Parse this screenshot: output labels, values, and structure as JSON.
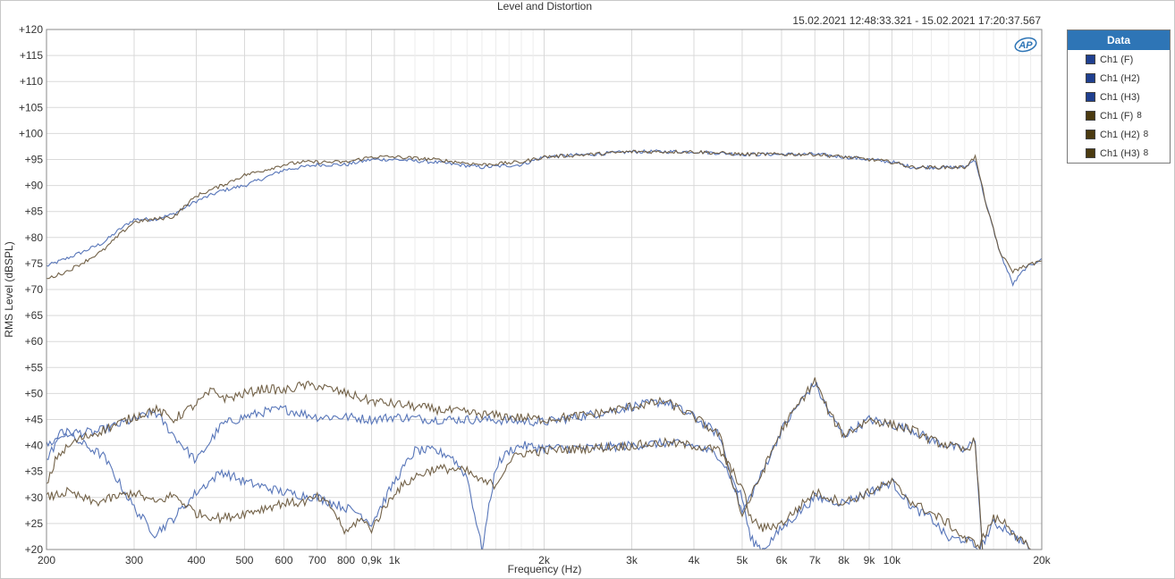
{
  "chart_data": {
    "type": "line",
    "title": "Level and Distortion",
    "subtitle": "15.02.2021 12:48:33.321 - 15.02.2021 17:20:37.567",
    "xlabel": "Frequency (Hz)",
    "ylabel": "RMS Level (dBSPL)",
    "xscale": "log",
    "xlim": [
      200,
      20000
    ],
    "ylim": [
      20,
      120
    ],
    "grid": true,
    "legend_position": "right",
    "legend_title": "Data",
    "x_ticks": [
      {
        "v": 200,
        "label": "200"
      },
      {
        "v": 300,
        "label": "300"
      },
      {
        "v": 400,
        "label": "400"
      },
      {
        "v": 500,
        "label": "500"
      },
      {
        "v": 600,
        "label": "600"
      },
      {
        "v": 700,
        "label": "700"
      },
      {
        "v": 800,
        "label": "800"
      },
      {
        "v": 900,
        "label": "0,9k"
      },
      {
        "v": 1000,
        "label": "1k"
      },
      {
        "v": 2000,
        "label": "2k"
      },
      {
        "v": 3000,
        "label": "3k"
      },
      {
        "v": 4000,
        "label": "4k"
      },
      {
        "v": 5000,
        "label": "5k"
      },
      {
        "v": 6000,
        "label": "6k"
      },
      {
        "v": 7000,
        "label": "7k"
      },
      {
        "v": 8000,
        "label": "8k"
      },
      {
        "v": 9000,
        "label": "9k"
      },
      {
        "v": 10000,
        "label": "10k"
      },
      {
        "v": 20000,
        "label": "20k"
      }
    ],
    "x_minor": [
      1100,
      1200,
      1300,
      1400,
      1500,
      1600,
      1700,
      1800,
      1900,
      11000,
      12000,
      13000,
      14000,
      15000,
      16000,
      17000,
      18000,
      19000
    ],
    "y_ticks": [
      {
        "v": 120,
        "label": "+120"
      },
      {
        "v": 115,
        "label": "+115"
      },
      {
        "v": 110,
        "label": "+110"
      },
      {
        "v": 105,
        "label": "+105"
      },
      {
        "v": 100,
        "label": "+100"
      },
      {
        "v": 95,
        "label": "+95"
      },
      {
        "v": 90,
        "label": "+90"
      },
      {
        "v": 85,
        "label": "+85"
      },
      {
        "v": 80,
        "label": "+80"
      },
      {
        "v": 75,
        "label": "+75"
      },
      {
        "v": 70,
        "label": "+70"
      },
      {
        "v": 65,
        "label": "+65"
      },
      {
        "v": 60,
        "label": "+60"
      },
      {
        "v": 55,
        "label": "+55"
      },
      {
        "v": 50,
        "label": "+50"
      },
      {
        "v": 45,
        "label": "+45"
      },
      {
        "v": 40,
        "label": "+40"
      },
      {
        "v": 35,
        "label": "+35"
      },
      {
        "v": 30,
        "label": "+30"
      },
      {
        "v": 25,
        "label": "+25"
      },
      {
        "v": 20,
        "label": "+20"
      }
    ],
    "series": [
      {
        "name": "Ch1 (F)",
        "suffix": "",
        "color": "#4f6fb5",
        "legend_color": "#1f3f8f",
        "x": [
          200,
          220,
          240,
          260,
          280,
          300,
          330,
          360,
          400,
          450,
          500,
          550,
          600,
          650,
          700,
          800,
          900,
          1000,
          1200,
          1500,
          1800,
          2000,
          2500,
          3000,
          3500,
          4000,
          5000,
          6000,
          7000,
          8000,
          9000,
          10000,
          11000,
          12000,
          13000,
          14000,
          14700,
          15500,
          16500,
          17500,
          18500,
          20000
        ],
        "y": [
          74.5,
          76,
          77.5,
          79,
          81.5,
          83.5,
          83.5,
          84.5,
          87,
          89,
          90,
          91.5,
          93,
          93.5,
          94,
          94,
          95,
          95,
          94.5,
          93.5,
          94,
          95.5,
          96,
          96.5,
          96.5,
          96.5,
          96,
          96,
          96,
          95.5,
          95,
          94.5,
          93.5,
          93.5,
          93.5,
          93.5,
          95,
          86,
          77,
          71,
          74,
          76
        ]
      },
      {
        "name": "Ch1 (H2)",
        "suffix": "",
        "color": "#4f6fb5",
        "legend_color": "#1f3f8f",
        "x": [
          200,
          220,
          250,
          300,
          330,
          360,
          400,
          450,
          500,
          550,
          600,
          700,
          800,
          900,
          1000,
          1200,
          1500,
          2000,
          2500,
          3000,
          3500,
          4000,
          4500,
          5000,
          5500,
          6000,
          6500,
          7000,
          7500,
          8000,
          9000,
          10000,
          11000,
          12000,
          13000,
          14000,
          14700,
          15200
        ],
        "y": [
          40,
          42.5,
          42.5,
          45,
          46.5,
          42,
          37,
          44,
          45.5,
          46.5,
          47,
          45.5,
          45.5,
          45,
          45.5,
          45,
          45,
          44.5,
          46,
          47.5,
          48.5,
          45.5,
          42,
          27,
          35,
          43,
          48,
          52,
          46,
          42,
          45,
          44,
          43,
          41,
          40,
          39,
          41,
          20
        ]
      },
      {
        "name": "Ch1 (H3)",
        "suffix": "",
        "color": "#4f6fb5",
        "legend_color": "#1f3f8f",
        "x": [
          200,
          215,
          230,
          260,
          300,
          330,
          360,
          400,
          450,
          500,
          550,
          600,
          700,
          800,
          850,
          900,
          1000,
          1100,
          1200,
          1300,
          1400,
          1500,
          1600,
          1700,
          1800,
          2000,
          2500,
          3000,
          3500,
          4000,
          4500,
          5000,
          5200,
          5500,
          6000,
          7000,
          8000,
          9000,
          10000,
          11000,
          12000,
          13000,
          14000,
          15000,
          16000,
          17000,
          18000,
          19000
        ],
        "y": [
          37,
          43,
          41,
          38,
          28,
          23,
          26,
          31,
          35,
          33,
          32,
          31,
          30,
          28,
          27,
          25,
          33,
          39,
          39,
          38,
          34,
          20,
          36,
          39,
          40,
          39.5,
          39.5,
          40,
          40.5,
          40,
          38,
          30,
          22,
          20,
          24,
          30,
          29,
          31,
          33,
          28,
          26,
          22,
          22,
          20,
          25,
          24,
          22,
          20
        ]
      },
      {
        "name": "Ch1 (F)",
        "suffix": "8",
        "color": "#6b5a3e",
        "legend_color": "#4a3a10",
        "x": [
          200,
          220,
          240,
          260,
          280,
          300,
          330,
          360,
          400,
          450,
          500,
          550,
          600,
          650,
          700,
          800,
          900,
          1000,
          1200,
          1500,
          1800,
          2000,
          2500,
          3000,
          3500,
          4000,
          5000,
          6000,
          7000,
          8000,
          9000,
          10000,
          11000,
          12000,
          13000,
          14000,
          14700,
          15500,
          16500,
          17500,
          18500,
          20000
        ],
        "y": [
          72,
          73.5,
          75.5,
          77.5,
          80.5,
          83,
          83.5,
          84,
          88,
          90,
          92,
          93,
          94,
          94.5,
          94.5,
          94.5,
          95.5,
          95.5,
          95,
          94,
          94.5,
          95.5,
          96,
          96.5,
          96.5,
          96.5,
          96,
          96,
          96,
          95.5,
          95,
          94.5,
          93.5,
          93.5,
          93.5,
          93.5,
          95.5,
          86,
          77,
          73.5,
          74.5,
          75.5
        ]
      },
      {
        "name": "Ch1 (H2)",
        "suffix": "8",
        "color": "#6b5a3e",
        "legend_color": "#4a3a10",
        "x": [
          200,
          210,
          230,
          260,
          300,
          330,
          360,
          400,
          430,
          460,
          500,
          550,
          600,
          650,
          700,
          800,
          900,
          1000,
          1200,
          1500,
          2000,
          2500,
          3000,
          3500,
          4000,
          4500,
          5000,
          5500,
          6000,
          6500,
          7000,
          7500,
          8000,
          9000,
          10000,
          11000,
          12000,
          13000,
          14000,
          14700,
          15200
        ],
        "y": [
          32,
          38,
          41,
          43,
          45.5,
          47,
          45,
          48,
          50.5,
          49,
          50,
          51,
          50.5,
          51.5,
          51.5,
          50,
          48.5,
          48,
          47,
          46,
          45,
          46,
          47.5,
          48.5,
          45.5,
          42,
          26.5,
          35,
          43,
          48,
          52.5,
          46,
          42,
          45,
          44,
          43,
          41,
          40,
          39,
          41,
          20
        ]
      },
      {
        "name": "Ch1 (H3)",
        "suffix": "8",
        "color": "#6b5a3e",
        "legend_color": "#4a3a10",
        "x": [
          200,
          220,
          250,
          300,
          330,
          360,
          400,
          450,
          500,
          550,
          600,
          650,
          700,
          750,
          800,
          850,
          900,
          1000,
          1100,
          1200,
          1300,
          1400,
          1500,
          1600,
          1700,
          1800,
          2000,
          2500,
          3000,
          3500,
          4000,
          4500,
          5000,
          5200,
          5500,
          6000,
          7000,
          8000,
          9000,
          10000,
          11000,
          12000,
          13000,
          14000,
          15000,
          16000,
          17000,
          18000,
          19000
        ],
        "y": [
          30,
          31,
          29,
          31,
          29,
          30.5,
          27,
          26,
          27,
          28,
          29,
          29,
          30,
          28,
          23,
          26,
          24,
          31,
          34,
          35.5,
          35.5,
          35,
          33,
          32.5,
          37,
          38.5,
          39,
          39.5,
          40,
          40.5,
          40,
          39,
          32,
          26,
          24,
          25,
          31,
          29,
          31,
          33,
          29,
          27,
          25,
          22,
          21,
          26,
          25,
          22,
          20
        ]
      }
    ]
  }
}
